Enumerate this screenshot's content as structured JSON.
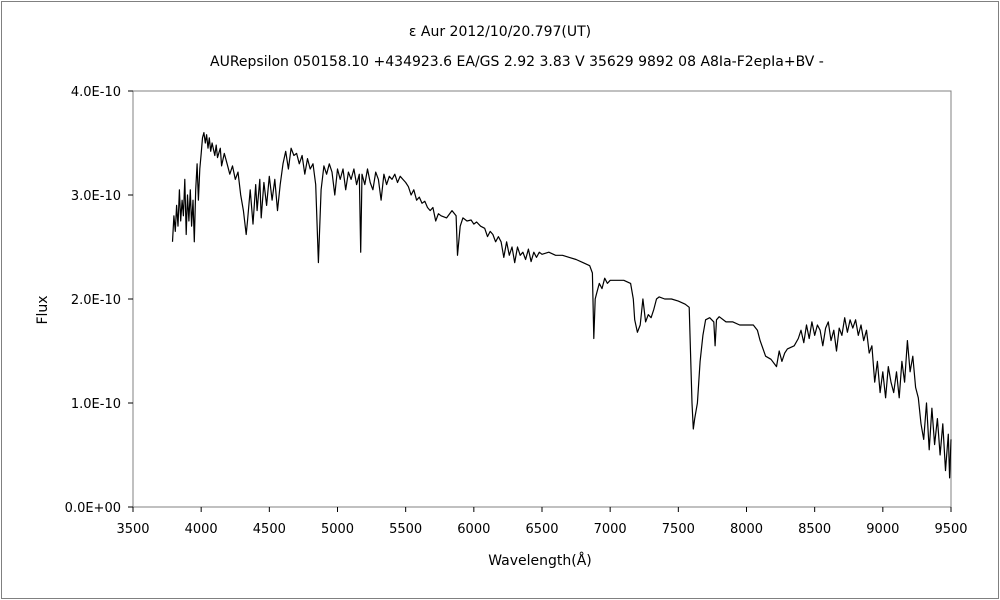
{
  "chart_data": {
    "type": "line",
    "title": "ε  Aur    2012/10/20.797(UT)",
    "subtitle": "AURepsilon 050158.10 +434923.6 EA/GS 2.92 3.83 V 35629 9892 08 A8Ia-F2epIa+BV -",
    "xlabel": "Wavelength(Å)",
    "ylabel": "Flux",
    "xlim": [
      3500,
      9500
    ],
    "ylim": [
      0,
      4e-10
    ],
    "xticks": [
      "3500",
      "4000",
      "4500",
      "5000",
      "5500",
      "6000",
      "6500",
      "7000",
      "7500",
      "8000",
      "8500",
      "9000",
      "9500"
    ],
    "yticks": [
      "0.0E+00",
      "1.0E-10",
      "2.0E-10",
      "3.0E-10",
      "4.0E-10"
    ],
    "grid": false,
    "line_color": "#000000",
    "points": [
      [
        3790,
        2.55e-10
      ],
      [
        3800,
        2.8e-10
      ],
      [
        3810,
        2.65e-10
      ],
      [
        3820,
        2.9e-10
      ],
      [
        3830,
        2.7e-10
      ],
      [
        3840,
        3.05e-10
      ],
      [
        3850,
        2.75e-10
      ],
      [
        3860,
        2.95e-10
      ],
      [
        3870,
        2.8e-10
      ],
      [
        3880,
        3.15e-10
      ],
      [
        3890,
        2.62e-10
      ],
      [
        3900,
        3e-10
      ],
      [
        3910,
        2.75e-10
      ],
      [
        3920,
        3.05e-10
      ],
      [
        3930,
        2.7e-10
      ],
      [
        3940,
        2.95e-10
      ],
      [
        3950,
        2.55e-10
      ],
      [
        3960,
        3.05e-10
      ],
      [
        3970,
        3.3e-10
      ],
      [
        3980,
        2.95e-10
      ],
      [
        3990,
        3.25e-10
      ],
      [
        4000,
        3.4e-10
      ],
      [
        4010,
        3.55e-10
      ],
      [
        4020,
        3.6e-10
      ],
      [
        4030,
        3.5e-10
      ],
      [
        4040,
        3.58e-10
      ],
      [
        4050,
        3.45e-10
      ],
      [
        4060,
        3.55e-10
      ],
      [
        4070,
        3.42e-10
      ],
      [
        4080,
        3.5e-10
      ],
      [
        4100,
        3.38e-10
      ],
      [
        4110,
        3.48e-10
      ],
      [
        4120,
        3.36e-10
      ],
      [
        4140,
        3.45e-10
      ],
      [
        4150,
        3.28e-10
      ],
      [
        4170,
        3.4e-10
      ],
      [
        4190,
        3.3e-10
      ],
      [
        4210,
        3.2e-10
      ],
      [
        4230,
        3.28e-10
      ],
      [
        4250,
        3.15e-10
      ],
      [
        4270,
        3.22e-10
      ],
      [
        4290,
        3e-10
      ],
      [
        4310,
        2.85e-10
      ],
      [
        4330,
        2.62e-10
      ],
      [
        4340,
        2.75e-10
      ],
      [
        4360,
        3.05e-10
      ],
      [
        4380,
        2.72e-10
      ],
      [
        4400,
        3.1e-10
      ],
      [
        4410,
        2.85e-10
      ],
      [
        4430,
        3.15e-10
      ],
      [
        4440,
        2.78e-10
      ],
      [
        4460,
        3.12e-10
      ],
      [
        4480,
        2.9e-10
      ],
      [
        4500,
        3.18e-10
      ],
      [
        4520,
        2.95e-10
      ],
      [
        4540,
        3.15e-10
      ],
      [
        4560,
        2.85e-10
      ],
      [
        4580,
        3.1e-10
      ],
      [
        4600,
        3.3e-10
      ],
      [
        4620,
        3.42e-10
      ],
      [
        4640,
        3.25e-10
      ],
      [
        4660,
        3.45e-10
      ],
      [
        4680,
        3.38e-10
      ],
      [
        4700,
        3.4e-10
      ],
      [
        4720,
        3.3e-10
      ],
      [
        4740,
        3.38e-10
      ],
      [
        4760,
        3.2e-10
      ],
      [
        4780,
        3.35e-10
      ],
      [
        4800,
        3.25e-10
      ],
      [
        4820,
        3.3e-10
      ],
      [
        4840,
        3.1e-10
      ],
      [
        4860,
        2.35e-10
      ],
      [
        4880,
        3.05e-10
      ],
      [
        4900,
        3.28e-10
      ],
      [
        4920,
        3.2e-10
      ],
      [
        4940,
        3.3e-10
      ],
      [
        4960,
        3.22e-10
      ],
      [
        4980,
        3e-10
      ],
      [
        5000,
        3.25e-10
      ],
      [
        5020,
        3.15e-10
      ],
      [
        5040,
        3.25e-10
      ],
      [
        5060,
        3.05e-10
      ],
      [
        5080,
        3.22e-10
      ],
      [
        5100,
        3.15e-10
      ],
      [
        5120,
        3.25e-10
      ],
      [
        5140,
        3.1e-10
      ],
      [
        5160,
        3.2e-10
      ],
      [
        5170,
        2.45e-10
      ],
      [
        5180,
        3.2e-10
      ],
      [
        5200,
        3.1e-10
      ],
      [
        5220,
        3.25e-10
      ],
      [
        5240,
        3.12e-10
      ],
      [
        5260,
        3.05e-10
      ],
      [
        5280,
        3.22e-10
      ],
      [
        5300,
        3.15e-10
      ],
      [
        5320,
        2.95e-10
      ],
      [
        5340,
        3.2e-10
      ],
      [
        5360,
        3.1e-10
      ],
      [
        5380,
        3.18e-10
      ],
      [
        5400,
        3.15e-10
      ],
      [
        5420,
        3.2e-10
      ],
      [
        5440,
        3.12e-10
      ],
      [
        5460,
        3.18e-10
      ],
      [
        5480,
        3.15e-10
      ],
      [
        5500,
        3.12e-10
      ],
      [
        5520,
        3.08e-10
      ],
      [
        5540,
        3e-10
      ],
      [
        5560,
        3.05e-10
      ],
      [
        5580,
        2.95e-10
      ],
      [
        5600,
        2.98e-10
      ],
      [
        5620,
        2.92e-10
      ],
      [
        5640,
        2.94e-10
      ],
      [
        5660,
        2.88e-10
      ],
      [
        5680,
        2.85e-10
      ],
      [
        5700,
        2.88e-10
      ],
      [
        5720,
        2.75e-10
      ],
      [
        5740,
        2.82e-10
      ],
      [
        5760,
        2.8e-10
      ],
      [
        5800,
        2.78e-10
      ],
      [
        5840,
        2.85e-10
      ],
      [
        5870,
        2.8e-10
      ],
      [
        5880,
        2.42e-10
      ],
      [
        5900,
        2.7e-10
      ],
      [
        5920,
        2.78e-10
      ],
      [
        5950,
        2.75e-10
      ],
      [
        5980,
        2.76e-10
      ],
      [
        6000,
        2.72e-10
      ],
      [
        6020,
        2.74e-10
      ],
      [
        6050,
        2.7e-10
      ],
      [
        6080,
        2.68e-10
      ],
      [
        6100,
        2.6e-10
      ],
      [
        6120,
        2.65e-10
      ],
      [
        6140,
        2.62e-10
      ],
      [
        6160,
        2.55e-10
      ],
      [
        6180,
        2.6e-10
      ],
      [
        6200,
        2.55e-10
      ],
      [
        6220,
        2.4e-10
      ],
      [
        6240,
        2.55e-10
      ],
      [
        6260,
        2.42e-10
      ],
      [
        6280,
        2.5e-10
      ],
      [
        6300,
        2.35e-10
      ],
      [
        6320,
        2.5e-10
      ],
      [
        6340,
        2.42e-10
      ],
      [
        6360,
        2.45e-10
      ],
      [
        6380,
        2.38e-10
      ],
      [
        6400,
        2.48e-10
      ],
      [
        6420,
        2.36e-10
      ],
      [
        6440,
        2.45e-10
      ],
      [
        6460,
        2.4e-10
      ],
      [
        6480,
        2.45e-10
      ],
      [
        6500,
        2.43e-10
      ],
      [
        6550,
        2.45e-10
      ],
      [
        6600,
        2.42e-10
      ],
      [
        6650,
        2.42e-10
      ],
      [
        6700,
        2.4e-10
      ],
      [
        6750,
        2.38e-10
      ],
      [
        6800,
        2.35e-10
      ],
      [
        6850,
        2.32e-10
      ],
      [
        6870,
        2.25e-10
      ],
      [
        6880,
        1.62e-10
      ],
      [
        6890,
        2e-10
      ],
      [
        6900,
        2.05e-10
      ],
      [
        6920,
        2.15e-10
      ],
      [
        6940,
        2.1e-10
      ],
      [
        6960,
        2.2e-10
      ],
      [
        6980,
        2.15e-10
      ],
      [
        7000,
        2.18e-10
      ],
      [
        7050,
        2.18e-10
      ],
      [
        7100,
        2.18e-10
      ],
      [
        7150,
        2.15e-10
      ],
      [
        7170,
        2e-10
      ],
      [
        7180,
        1.8e-10
      ],
      [
        7200,
        1.68e-10
      ],
      [
        7220,
        1.75e-10
      ],
      [
        7240,
        2e-10
      ],
      [
        7260,
        1.78e-10
      ],
      [
        7280,
        1.85e-10
      ],
      [
        7300,
        1.82e-10
      ],
      [
        7320,
        1.9e-10
      ],
      [
        7340,
        2e-10
      ],
      [
        7360,
        2.02e-10
      ],
      [
        7400,
        2e-10
      ],
      [
        7450,
        2e-10
      ],
      [
        7500,
        1.98e-10
      ],
      [
        7550,
        1.95e-10
      ],
      [
        7580,
        1.92e-10
      ],
      [
        7600,
        1e-10
      ],
      [
        7610,
        7.5e-11
      ],
      [
        7620,
        8.5e-11
      ],
      [
        7640,
        1e-10
      ],
      [
        7660,
        1.4e-10
      ],
      [
        7680,
        1.65e-10
      ],
      [
        7700,
        1.8e-10
      ],
      [
        7730,
        1.82e-10
      ],
      [
        7760,
        1.78e-10
      ],
      [
        7770,
        1.55e-10
      ],
      [
        7780,
        1.8e-10
      ],
      [
        7800,
        1.83e-10
      ],
      [
        7850,
        1.78e-10
      ],
      [
        7900,
        1.78e-10
      ],
      [
        7950,
        1.75e-10
      ],
      [
        8000,
        1.75e-10
      ],
      [
        8050,
        1.75e-10
      ],
      [
        8080,
        1.7e-10
      ],
      [
        8100,
        1.6e-10
      ],
      [
        8140,
        1.45e-10
      ],
      [
        8180,
        1.42e-10
      ],
      [
        8220,
        1.35e-10
      ],
      [
        8240,
        1.5e-10
      ],
      [
        8260,
        1.4e-10
      ],
      [
        8280,
        1.48e-10
      ],
      [
        8300,
        1.52e-10
      ],
      [
        8350,
        1.55e-10
      ],
      [
        8380,
        1.62e-10
      ],
      [
        8400,
        1.7e-10
      ],
      [
        8420,
        1.58e-10
      ],
      [
        8440,
        1.75e-10
      ],
      [
        8460,
        1.62e-10
      ],
      [
        8480,
        1.78e-10
      ],
      [
        8500,
        1.65e-10
      ],
      [
        8520,
        1.75e-10
      ],
      [
        8540,
        1.7e-10
      ],
      [
        8560,
        1.55e-10
      ],
      [
        8580,
        1.72e-10
      ],
      [
        8600,
        1.78e-10
      ],
      [
        8620,
        1.6e-10
      ],
      [
        8640,
        1.7e-10
      ],
      [
        8660,
        1.5e-10
      ],
      [
        8680,
        1.72e-10
      ],
      [
        8700,
        1.65e-10
      ],
      [
        8720,
        1.82e-10
      ],
      [
        8740,
        1.68e-10
      ],
      [
        8760,
        1.8e-10
      ],
      [
        8780,
        1.72e-10
      ],
      [
        8800,
        1.8e-10
      ],
      [
        8820,
        1.65e-10
      ],
      [
        8840,
        1.75e-10
      ],
      [
        8860,
        1.6e-10
      ],
      [
        8880,
        1.7e-10
      ],
      [
        8900,
        1.48e-10
      ],
      [
        8920,
        1.55e-10
      ],
      [
        8940,
        1.2e-10
      ],
      [
        8960,
        1.4e-10
      ],
      [
        8980,
        1.1e-10
      ],
      [
        9000,
        1.3e-10
      ],
      [
        9020,
        1.05e-10
      ],
      [
        9040,
        1.35e-10
      ],
      [
        9060,
        1.2e-10
      ],
      [
        9080,
        1.1e-10
      ],
      [
        9100,
        1.3e-10
      ],
      [
        9120,
        1.05e-10
      ],
      [
        9140,
        1.4e-10
      ],
      [
        9160,
        1.2e-10
      ],
      [
        9180,
        1.6e-10
      ],
      [
        9200,
        1.3e-10
      ],
      [
        9220,
        1.45e-10
      ],
      [
        9240,
        1.15e-10
      ],
      [
        9260,
        1.05e-10
      ],
      [
        9280,
        8e-11
      ],
      [
        9300,
        6.5e-11
      ],
      [
        9320,
        1e-10
      ],
      [
        9340,
        5.5e-11
      ],
      [
        9360,
        9.5e-11
      ],
      [
        9380,
        6e-11
      ],
      [
        9400,
        8.5e-11
      ],
      [
        9420,
        5e-11
      ],
      [
        9440,
        8e-11
      ],
      [
        9460,
        3.5e-11
      ],
      [
        9480,
        7e-11
      ],
      [
        9490,
        2.8e-11
      ],
      [
        9500,
        6.5e-11
      ]
    ]
  }
}
